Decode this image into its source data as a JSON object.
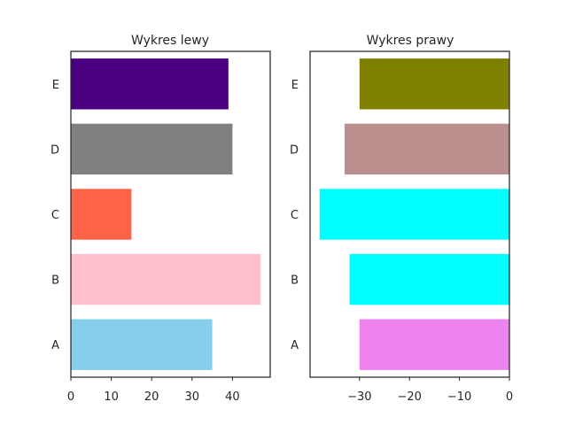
{
  "chart_data": [
    {
      "type": "bar",
      "orientation": "horizontal",
      "title": "Wykres lewy",
      "categories": [
        "A",
        "B",
        "C",
        "D",
        "E"
      ],
      "values": [
        35,
        47,
        15,
        40,
        39
      ],
      "colors": [
        "#87ceeb",
        "#ffc0cb",
        "#ff6347",
        "#808080",
        "#4b0082"
      ],
      "xlim": [
        0,
        49.35
      ],
      "xticks": [
        0,
        10,
        20,
        30,
        40
      ],
      "xtick_labels": [
        "0",
        "10",
        "20",
        "30",
        "40"
      ],
      "grid": false
    },
    {
      "type": "bar",
      "orientation": "horizontal",
      "title": "Wykres prawy",
      "categories": [
        "A",
        "B",
        "C",
        "D",
        "E"
      ],
      "values": [
        -30,
        -32,
        -38,
        -33,
        -30
      ],
      "colors": [
        "#ee82ee",
        "#00ffff",
        "#00ffff",
        "#bc8f8f",
        "#808000"
      ],
      "xlim": [
        -39.9,
        0
      ],
      "xticks": [
        -30,
        -20,
        -10,
        0
      ],
      "xtick_labels": [
        "−30",
        "−20",
        "−10",
        "0"
      ],
      "grid": false
    }
  ]
}
